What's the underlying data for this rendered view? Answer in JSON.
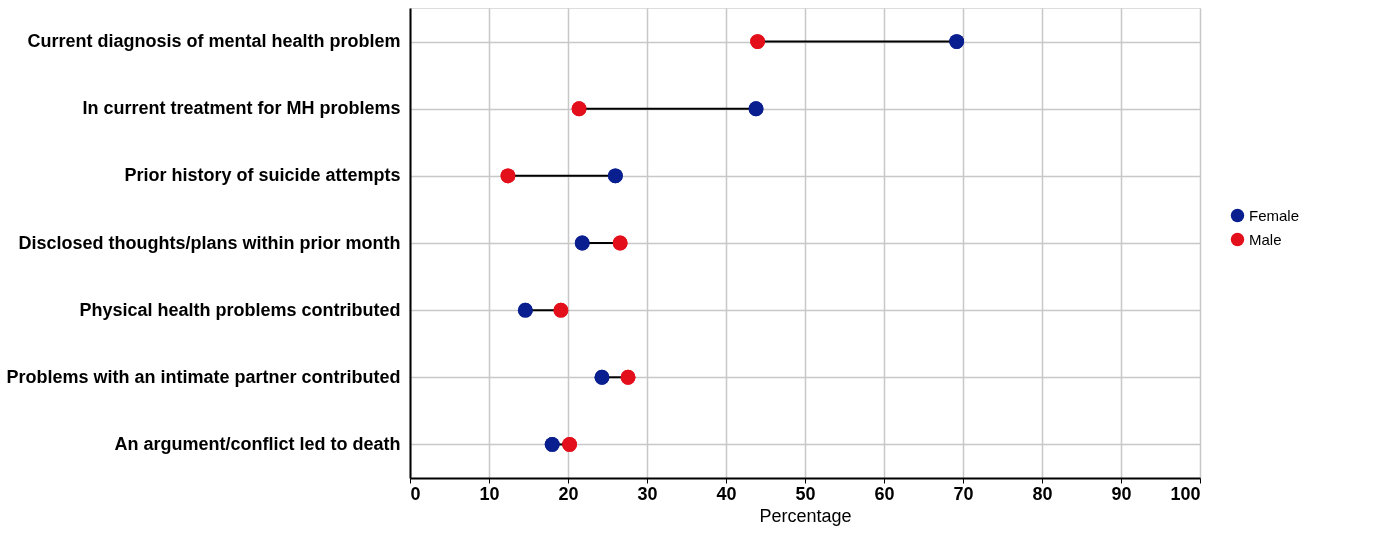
{
  "chart_data": {
    "type": "scatter",
    "xlabel": "Percentage",
    "categories": [
      "Current diagnosis of mental health problem",
      "In current treatment for MH problems",
      "Prior history of suicide attempts",
      "Disclosed thoughts/plans within prior month",
      "Physical health problems contributed",
      "Problems with an intimate partner contributed",
      "An argument/conflict led to death"
    ],
    "series": [
      {
        "name": "Female",
        "color": "#0a1f8f",
        "values": [
          69.2,
          43.8,
          26.0,
          21.8,
          14.6,
          24.3,
          18.0
        ]
      },
      {
        "name": "Male",
        "color": "#e3101c",
        "values": [
          44.0,
          21.4,
          12.4,
          26.6,
          19.1,
          27.6,
          20.2
        ]
      }
    ],
    "xlim": [
      0,
      100
    ],
    "xticks": [
      0,
      10,
      20,
      30,
      40,
      50,
      60,
      70,
      80,
      90,
      100
    ],
    "grid": true,
    "legend": "right",
    "marker": "circle",
    "orientation": "horizontal"
  }
}
